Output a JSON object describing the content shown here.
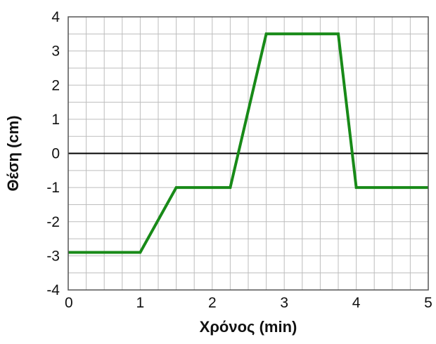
{
  "chart_data": {
    "type": "line",
    "title": "",
    "xlabel": "Χρόνος (min)",
    "ylabel": "Θέση (cm)",
    "xlim": [
      0,
      5
    ],
    "ylim": [
      -4,
      4
    ],
    "x_ticks": [
      "0",
      "1",
      "2",
      "3",
      "4",
      "5"
    ],
    "y_ticks": [
      "4",
      "3",
      "2",
      "1",
      "0",
      "-1",
      "-2",
      "-3",
      "-4"
    ],
    "grid": true,
    "legend": "none",
    "series": [
      {
        "color": "#188A18",
        "points": [
          {
            "x": 0,
            "y": -2.9
          },
          {
            "x": 1,
            "y": -2.9
          },
          {
            "x": 1.5,
            "y": -1
          },
          {
            "x": 2.25,
            "y": -1
          },
          {
            "x": 2.75,
            "y": 3.5
          },
          {
            "x": 3.75,
            "y": 3.5
          },
          {
            "x": 4,
            "y": -1
          },
          {
            "x": 5,
            "y": -1
          }
        ]
      }
    ],
    "zero_line_color": "#000000",
    "grid_color": "#BDBDBD",
    "frame_color": "#555555"
  }
}
